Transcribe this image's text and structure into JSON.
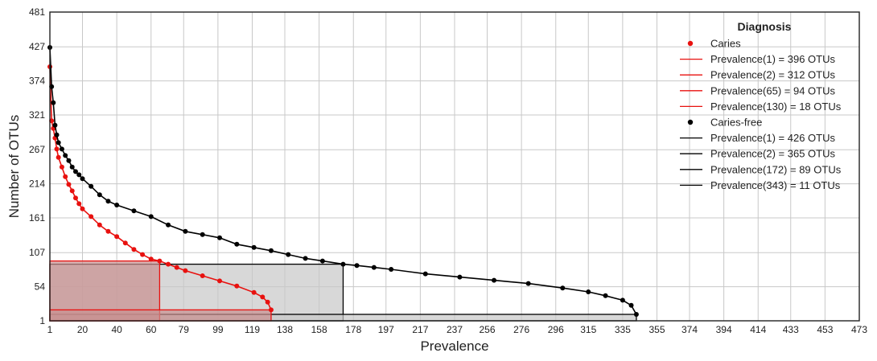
{
  "chart_data": {
    "type": "line",
    "xlabel": "Prevalence",
    "ylabel": "Number of OTUs",
    "xlim": [
      1,
      473
    ],
    "ylim": [
      1,
      481
    ],
    "x_ticks": [
      1,
      20,
      40,
      60,
      79,
      99,
      119,
      138,
      158,
      178,
      197,
      217,
      237,
      256,
      276,
      296,
      315,
      335,
      355,
      374,
      394,
      414,
      433,
      453,
      473
    ],
    "y_ticks": [
      1,
      54,
      107,
      161,
      214,
      267,
      321,
      374,
      427,
      481
    ],
    "grid": true,
    "legend": {
      "title": "Diagnosis",
      "position": "top-right",
      "entries": [
        {
          "label": "Caries",
          "kind": "marker",
          "color": "#e8110f"
        },
        {
          "label": "Prevalence(1) = 396 OTUs",
          "kind": "line",
          "color": "#e8110f"
        },
        {
          "label": "Prevalence(2) = 312 OTUs",
          "kind": "line",
          "color": "#e8110f"
        },
        {
          "label": "Prevalence(65) = 94 OTUs",
          "kind": "line",
          "color": "#e8110f"
        },
        {
          "label": "Prevalence(130) = 18 OTUs",
          "kind": "line",
          "color": "#e8110f"
        },
        {
          "label": "Caries-free",
          "kind": "marker",
          "color": "#000000"
        },
        {
          "label": "Prevalence(1) = 426 OTUs",
          "kind": "line",
          "color": "#000000"
        },
        {
          "label": "Prevalence(2) = 365 OTUs",
          "kind": "line",
          "color": "#000000"
        },
        {
          "label": "Prevalence(172) = 89 OTUs",
          "kind": "line",
          "color": "#000000"
        },
        {
          "label": "Prevalence(343) = 11 OTUs",
          "kind": "line",
          "color": "#000000"
        }
      ]
    },
    "series": [
      {
        "name": "Caries",
        "color": "#e8110f",
        "x": [
          1,
          2,
          3,
          4,
          5,
          6,
          8,
          10,
          12,
          14,
          16,
          18,
          20,
          25,
          30,
          35,
          40,
          45,
          50,
          55,
          60,
          65,
          70,
          75,
          80,
          90,
          100,
          110,
          120,
          125,
          128,
          130
        ],
        "y": [
          396,
          312,
          300,
          285,
          268,
          255,
          240,
          225,
          213,
          203,
          192,
          183,
          175,
          163,
          150,
          140,
          132,
          122,
          112,
          104,
          97,
          94,
          89,
          84,
          79,
          71,
          63,
          55,
          45,
          38,
          30,
          18
        ]
      },
      {
        "name": "Caries-free",
        "color": "#000000",
        "x": [
          1,
          2,
          3,
          4,
          5,
          6,
          8,
          10,
          12,
          14,
          16,
          18,
          20,
          25,
          30,
          35,
          40,
          50,
          60,
          70,
          80,
          90,
          100,
          110,
          120,
          130,
          140,
          150,
          160,
          172,
          180,
          190,
          200,
          220,
          240,
          260,
          280,
          300,
          315,
          325,
          335,
          340,
          343
        ],
        "y": [
          426,
          365,
          340,
          305,
          290,
          278,
          268,
          258,
          250,
          240,
          233,
          228,
          222,
          210,
          197,
          187,
          181,
          172,
          163,
          150,
          140,
          135,
          130,
          120,
          115,
          110,
          104,
          98,
          94,
          89,
          87,
          84,
          81,
          74,
          69,
          64,
          59,
          52,
          46,
          40,
          33,
          25,
          11
        ]
      }
    ],
    "reference_boxes": [
      {
        "series": "Caries",
        "x": 65,
        "y": 94
      },
      {
        "series": "Caries",
        "x": 130,
        "y": 18
      },
      {
        "series": "Caries-free",
        "x": 172,
        "y": 89
      },
      {
        "series": "Caries-free",
        "x": 343,
        "y": 11
      }
    ],
    "colors": {
      "caries": "#e8110f",
      "caries_free": "#000000",
      "caries_fill": "#c98f8f",
      "caries_free_fill": "#c8c8c8",
      "grid": "#c8c8c8"
    }
  }
}
